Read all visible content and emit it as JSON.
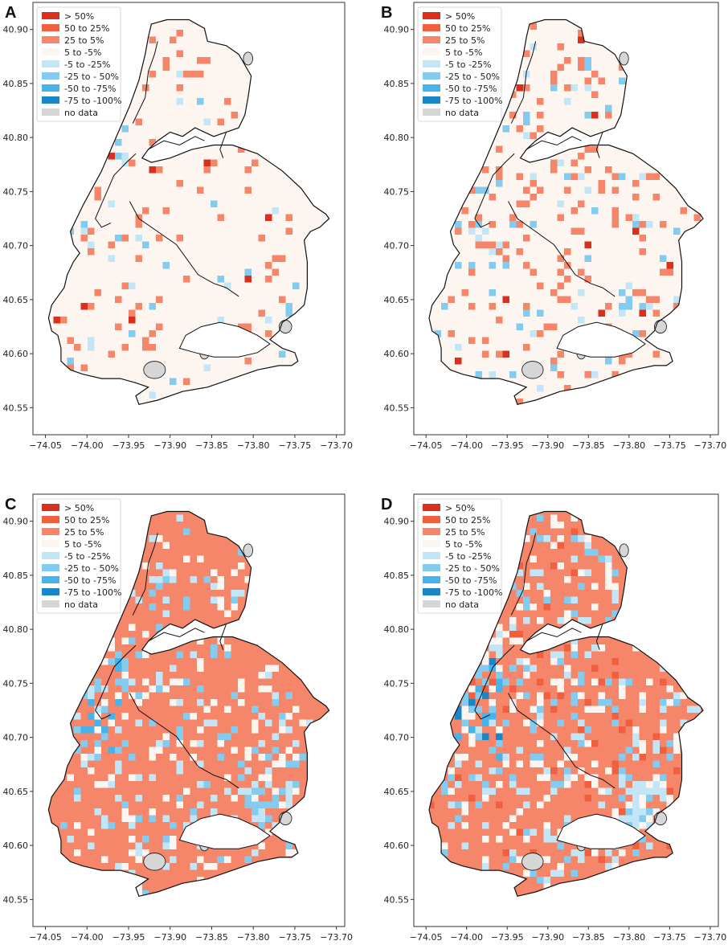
{
  "figure": {
    "colors": {
      "gt50": "#d7301f",
      "p50to25": "#f0603f",
      "p25to5": "#f6866a",
      "p5tom5": "#fcf5f0",
      "m5tom25": "#c3e6f6",
      "m25tom50": "#84ccef",
      "m50tom75": "#48b3ea",
      "m75tom100": "#1a86c8",
      "nodata": "#d6d6d6",
      "outline": "#111111",
      "axis": "#333333"
    }
  },
  "legend": [
    {
      "label": "> 50%",
      "color_key": "gt50"
    },
    {
      "label": "50 to 25%",
      "color_key": "p50to25"
    },
    {
      "label": "25 to 5%",
      "color_key": "p25to5"
    },
    {
      "label": "5 to -5%",
      "color_key": "p5tom5"
    },
    {
      "label": "-5 to -25%",
      "color_key": "m5tom25"
    },
    {
      "label": "-25 to - 50%",
      "color_key": "m25tom50"
    },
    {
      "label": "-50 to -75%",
      "color_key": "m50tom75"
    },
    {
      "label": "-75 to -100%",
      "color_key": "m75tom100"
    },
    {
      "label": "no data",
      "color_key": "nodata"
    }
  ],
  "panels": [
    {
      "letter": "A",
      "fill_key": "p5tom5",
      "orange_density": 0.06,
      "blue_density": 0.02
    },
    {
      "letter": "B",
      "fill_key": "p5tom5",
      "orange_density": 0.12,
      "blue_density": 0.05
    },
    {
      "letter": "C",
      "fill_key": "p25to5",
      "orange_density": 0.0,
      "blue_density": 0.12
    },
    {
      "letter": "D",
      "fill_key": "p25to5",
      "orange_density": 0.08,
      "blue_density": 0.14
    }
  ],
  "axes": {
    "x_ticks": [
      "−74.05",
      "−74.00",
      "−73.95",
      "−73.90",
      "−73.85",
      "−73.80",
      "−73.75",
      "−73.70"
    ],
    "y_ticks": [
      "40.90",
      "40.85",
      "40.80",
      "40.75",
      "40.70",
      "40.65",
      "40.60",
      "40.55"
    ],
    "x_values": [
      -74.05,
      -74.0,
      -73.95,
      -73.9,
      -73.85,
      -73.8,
      -73.75,
      -73.7
    ],
    "y_values": [
      40.9,
      40.85,
      40.8,
      40.75,
      40.7,
      40.65,
      40.6,
      40.55
    ],
    "xlim": [
      -74.065,
      -73.69
    ],
    "ylim": [
      40.525,
      40.925
    ]
  }
}
